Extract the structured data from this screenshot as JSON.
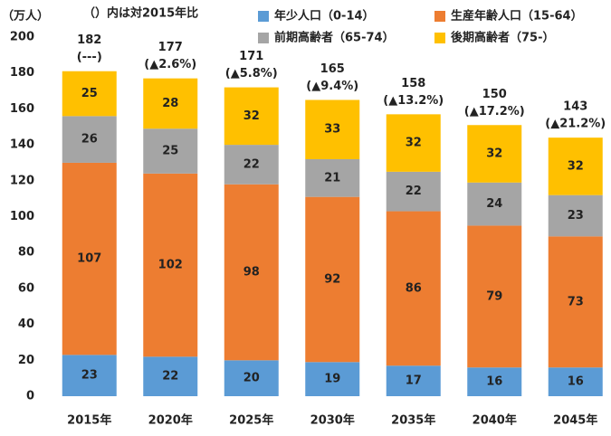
{
  "chart_data": {
    "type": "stacked_bar",
    "y_label": "（万人）",
    "annotation": "（）内は対2015年比",
    "categories": [
      "2015年",
      "2020年",
      "2025年",
      "2030年",
      "2035年",
      "2040年",
      "2045年"
    ],
    "series": [
      {
        "name": "年少人口（0-14）",
        "color": "#5b9bd5",
        "values": [
          23,
          22,
          20,
          19,
          17,
          16,
          16
        ]
      },
      {
        "name": "生産年齢人口（15-64）",
        "color": "#ed7d31",
        "values": [
          107,
          102,
          98,
          92,
          86,
          79,
          73
        ]
      },
      {
        "name": "前期高齢者（65-74）",
        "color": "#a5a5a5",
        "values": [
          26,
          25,
          22,
          21,
          22,
          24,
          23
        ]
      },
      {
        "name": "後期高齢者（75-）",
        "color": "#ffc000",
        "values": [
          25,
          28,
          32,
          33,
          32,
          32,
          32
        ]
      }
    ],
    "totals": [
      182,
      177,
      171,
      165,
      158,
      150,
      143
    ],
    "total_notes": [
      "(---)",
      "(▲2.6%)",
      "(▲5.8%)",
      "(▲9.4%)",
      "(▲13.2%)",
      "(▲17.2%)",
      "(▲21.2%)"
    ],
    "ylim": [
      0,
      200
    ],
    "yticks": [
      0,
      20,
      40,
      60,
      80,
      100,
      120,
      140,
      160,
      180,
      200
    ],
    "grid": false
  }
}
